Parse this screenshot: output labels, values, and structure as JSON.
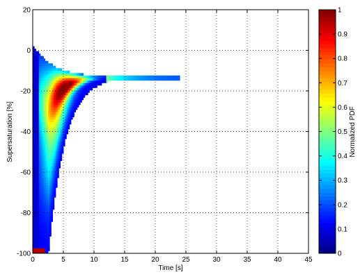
{
  "chart_data": {
    "type": "heatmap",
    "xlabel": "Time [s]",
    "ylabel": "Supersaturation [%]",
    "colorbar_label": "Normalized PDF",
    "xlim": [
      0,
      45
    ],
    "ylim": [
      -100,
      20
    ],
    "x_ticks": [
      "0",
      "5",
      "10",
      "15",
      "20",
      "25",
      "30",
      "35",
      "40",
      "45"
    ],
    "y_ticks": [
      "20",
      "0",
      "-20",
      "-40",
      "-60",
      "-80",
      "-100"
    ],
    "colorbar_ticks": [
      "1",
      "0.9",
      "0.8",
      "0.7",
      "0.6",
      "0.5",
      "0.4",
      "0.3",
      "0.2",
      "0.1",
      "0"
    ],
    "colorbar_range": [
      0,
      1
    ],
    "colormap": "jet",
    "grid": "dotted",
    "background_color": "#ffffff",
    "description_of_field": {
      "dense_region_time_range": [
        0,
        24
      ],
      "asymptotic_supersaturation": -13,
      "initial_supersaturation": 3,
      "peak_pdf_band_time_range": [
        2,
        8
      ],
      "peak_pdf_band_supersaturation_range": [
        -30,
        -5
      ]
    }
  }
}
